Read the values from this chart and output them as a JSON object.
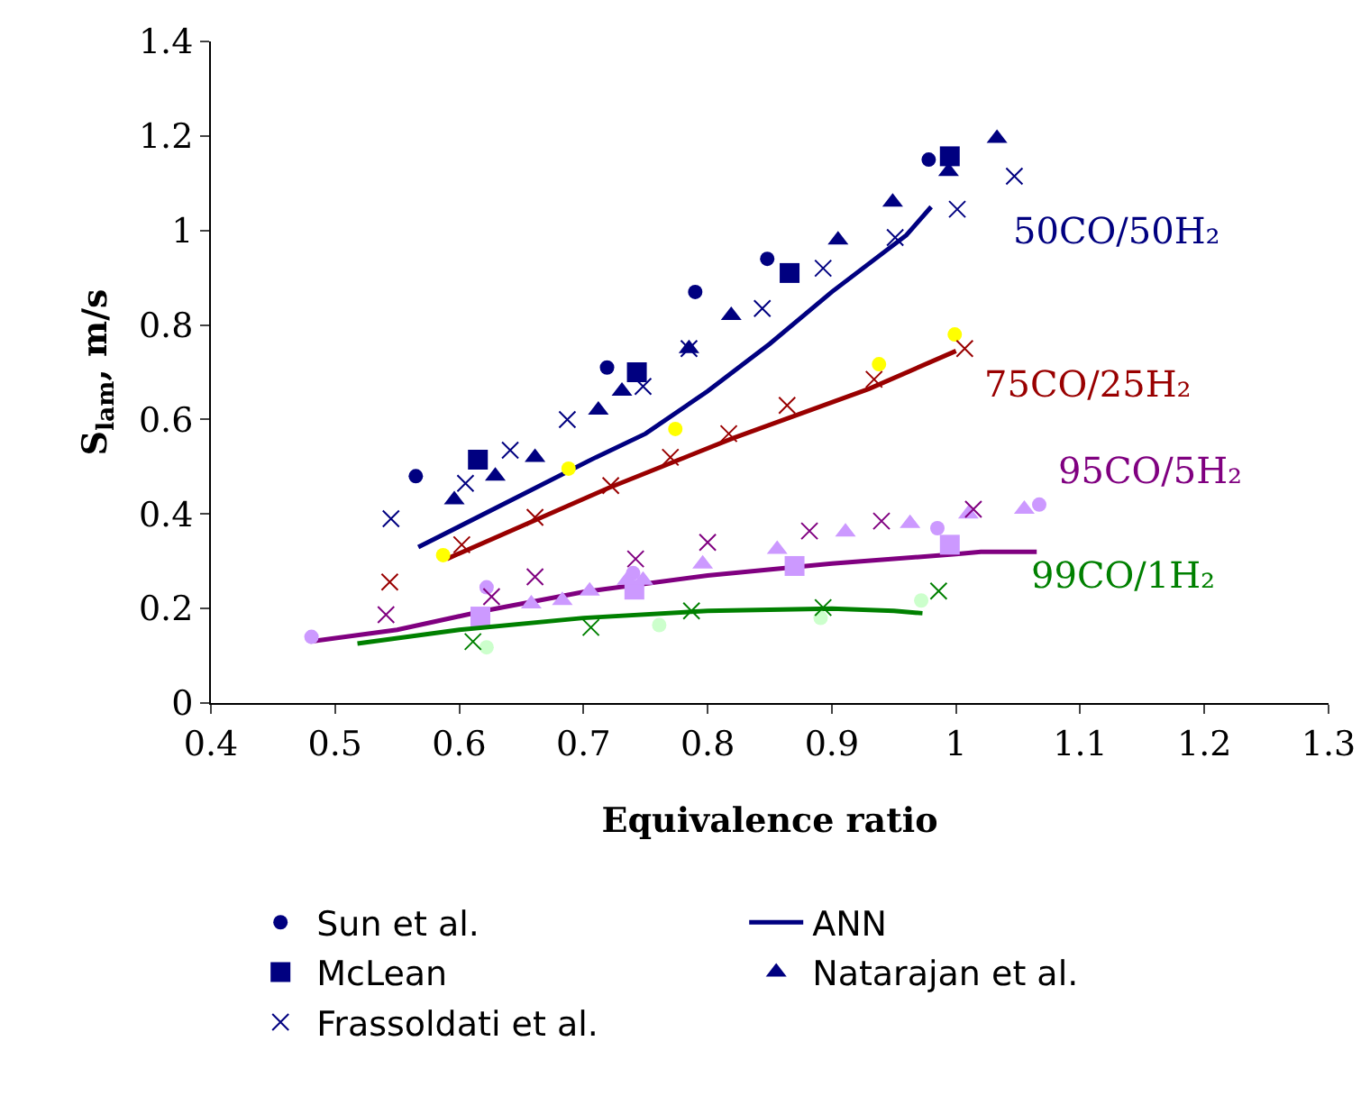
{
  "chart_data": {
    "type": "scatter",
    "xlabel": "Equivalence ratio",
    "ylabel": "S$_{lam}$, m/s",
    "xlim": [
      0.4,
      1.3
    ],
    "xticks": [
      0.4,
      0.5,
      0.6,
      0.7,
      0.8,
      0.9,
      1,
      1.1,
      1.2,
      1.3
    ],
    "ylim": [
      0,
      1.4
    ],
    "yticks": [
      0,
      0.2,
      0.4,
      0.6,
      0.8,
      1,
      1.2,
      1.4
    ],
    "legend": "bottom",
    "annotations": [
      "50CO/50H₂",
      "75CO/25H₂",
      "95CO/5H₂",
      "99CO/1H₂"
    ],
    "series": [
      {
        "name": "Sun et al.",
        "color": "#000080",
        "marker": "circle",
        "x": [
          0.565,
          0.719,
          0.79,
          0.848,
          0.978
        ],
        "values": [
          0.48,
          0.71,
          0.87,
          0.94,
          1.15
        ]
      },
      {
        "name": "ANN",
        "type": "line",
        "color": "#000080",
        "marker": "none",
        "x": [
          0.567,
          0.65,
          0.71,
          0.75,
          0.8,
          0.85,
          0.9,
          0.96,
          0.98
        ],
        "values": [
          0.33,
          0.44,
          0.52,
          0.57,
          0.66,
          0.76,
          0.87,
          0.99,
          1.05
        ]
      },
      {
        "name": "McLean",
        "color": "#000080",
        "marker": "square",
        "x": [
          0.615,
          0.743,
          0.866,
          0.995
        ],
        "values": [
          0.515,
          0.7,
          0.91,
          1.157
        ]
      },
      {
        "name": "Natarajan et al.",
        "color": "#000080",
        "marker": "triangle",
        "x": [
          0.596,
          0.629,
          0.661,
          0.712,
          0.731,
          0.785,
          0.819,
          0.905,
          0.949,
          0.994,
          1.033
        ],
        "values": [
          0.43,
          0.48,
          0.52,
          0.62,
          0.66,
          0.75,
          0.82,
          0.98,
          1.06,
          1.125,
          1.195
        ]
      },
      {
        "name": "Frassoldati et al.",
        "color": "#000080",
        "marker": "cross",
        "x": [
          0.545,
          0.605,
          0.641,
          0.687,
          0.748,
          0.785,
          0.844,
          0.893,
          0.951,
          1.001,
          1.047
        ],
        "values": [
          0.39,
          0.465,
          0.535,
          0.6,
          0.67,
          0.75,
          0.835,
          0.92,
          0.985,
          1.045,
          1.115
        ]
      },
      {
        "type": "line",
        "color": "#990000",
        "marker": "none",
        "x": [
          0.59,
          0.72,
          0.82,
          0.93,
          1.0
        ],
        "values": [
          0.305,
          0.455,
          0.56,
          0.665,
          0.745
        ]
      },
      {
        "color": "#ffff00",
        "marker": "circle",
        "x": [
          0.587,
          0.688,
          0.774,
          0.938,
          0.999
        ],
        "values": [
          0.313,
          0.496,
          0.58,
          0.717,
          0.78
        ]
      },
      {
        "color": "#990000",
        "marker": "cross",
        "x": [
          0.544,
          0.602,
          0.661,
          0.722,
          0.77,
          0.817,
          0.864,
          0.934,
          1.007
        ],
        "values": [
          0.256,
          0.335,
          0.393,
          0.46,
          0.52,
          0.57,
          0.63,
          0.685,
          0.75
        ]
      },
      {
        "type": "line",
        "color": "#800080",
        "marker": "none",
        "x": [
          0.48,
          0.55,
          0.62,
          0.7,
          0.8,
          0.9,
          1.0,
          1.02,
          1.065
        ],
        "values": [
          0.13,
          0.155,
          0.195,
          0.235,
          0.27,
          0.295,
          0.315,
          0.32,
          0.32
        ]
      },
      {
        "color": "#cc99ff",
        "marker": "circle",
        "x": [
          0.481,
          0.622,
          0.74,
          0.985,
          1.067
        ],
        "values": [
          0.14,
          0.245,
          0.275,
          0.37,
          0.42
        ]
      },
      {
        "color": "#cc99ff",
        "marker": "square",
        "x": [
          0.617,
          0.741,
          0.87,
          0.995
        ],
        "values": [
          0.183,
          0.24,
          0.29,
          0.335
        ]
      },
      {
        "color": "#cc99ff",
        "marker": "triangle",
        "x": [
          0.658,
          0.683,
          0.705,
          0.735,
          0.748,
          0.796,
          0.856,
          0.911,
          0.963,
          1.01,
          1.055
        ],
        "values": [
          0.21,
          0.217,
          0.237,
          0.26,
          0.26,
          0.294,
          0.325,
          0.362,
          0.38,
          0.4,
          0.41
        ]
      },
      {
        "color": "#800080",
        "marker": "cross",
        "x": [
          0.541,
          0.626,
          0.661,
          0.742,
          0.8,
          0.882,
          0.94,
          1.014
        ],
        "values": [
          0.187,
          0.225,
          0.267,
          0.305,
          0.34,
          0.364,
          0.385,
          0.41
        ]
      },
      {
        "type": "line",
        "color": "#008000",
        "marker": "none",
        "x": [
          0.518,
          0.6,
          0.7,
          0.8,
          0.9,
          0.95,
          0.973
        ],
        "values": [
          0.126,
          0.155,
          0.18,
          0.195,
          0.2,
          0.195,
          0.19
        ]
      },
      {
        "color": "#ccffcc",
        "marker": "circle",
        "x": [
          0.622,
          0.761,
          0.891,
          0.972
        ],
        "values": [
          0.118,
          0.165,
          0.18,
          0.217
        ]
      },
      {
        "color": "#008000",
        "marker": "cross",
        "x": [
          0.611,
          0.706,
          0.787,
          0.893,
          0.986
        ],
        "values": [
          0.13,
          0.16,
          0.195,
          0.202,
          0.237
        ]
      }
    ]
  }
}
